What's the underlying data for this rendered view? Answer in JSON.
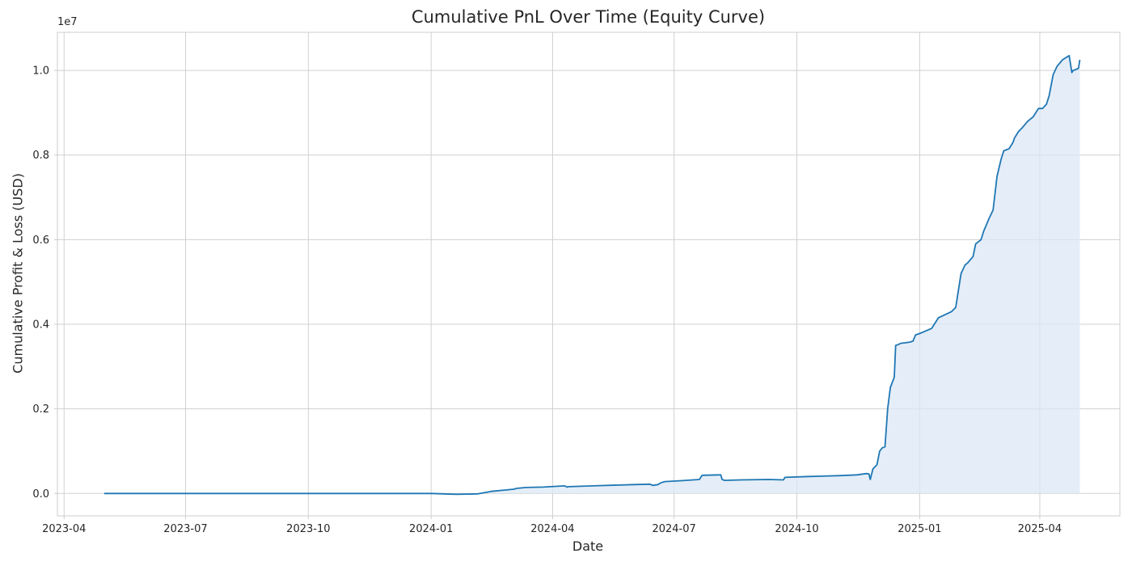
{
  "chart_data": {
    "type": "line",
    "title": "Cumulative PnL Over Time (Equity Curve)",
    "xlabel": "Date",
    "ylabel": "Cumulative Profit & Loss (USD)",
    "y_offset_label": "1e7",
    "x_ticks": [
      "2023-04",
      "2023-07",
      "2023-10",
      "2024-01",
      "2024-04",
      "2024-07",
      "2024-10",
      "2025-01",
      "2025-04"
    ],
    "y_ticks": [
      "0.0",
      "0.2",
      "0.4",
      "0.6",
      "0.8",
      "1.0"
    ],
    "xlim": [
      "2023-03-27",
      "2025-05-31"
    ],
    "ylim": [
      -530000,
      10900000
    ],
    "grid": true,
    "fill_under_line": true,
    "colors": {
      "line": "#1f77b4",
      "fill": "#dce8f5",
      "grid": "#d0d0d0",
      "axes": "#cccccc"
    },
    "series": [
      {
        "x": [
          "2023-05-01",
          "2023-08-01",
          "2023-11-01",
          "2024-01-01",
          "2024-01-20",
          "2024-02-05",
          "2024-02-15",
          "2024-02-25",
          "2024-03-03",
          "2024-03-05",
          "2024-03-12",
          "2024-03-25",
          "2024-04-10",
          "2024-04-12",
          "2024-04-13",
          "2024-05-01",
          "2024-06-01",
          "2024-06-13",
          "2024-06-15",
          "2024-06-19",
          "2024-06-21",
          "2024-06-24",
          "2024-07-05",
          "2024-07-20",
          "2024-07-22",
          "2024-08-05",
          "2024-08-06",
          "2024-08-08",
          "2024-08-20",
          "2024-09-10",
          "2024-09-21",
          "2024-09-22",
          "2024-10-10",
          "2024-11-01",
          "2024-11-15",
          "2024-11-22",
          "2024-11-24",
          "2024-11-25",
          "2024-11-27",
          "2024-11-30",
          "2024-12-02",
          "2024-12-04",
          "2024-12-06",
          "2024-12-08",
          "2024-12-10",
          "2024-12-13",
          "2024-12-14",
          "2024-12-16",
          "2024-12-18",
          "2024-12-21",
          "2024-12-23",
          "2024-12-25",
          "2024-12-27",
          "2024-12-29",
          "2025-01-01",
          "2025-01-10",
          "2025-01-13",
          "2025-01-15",
          "2025-01-25",
          "2025-01-28",
          "2025-02-01",
          "2025-02-04",
          "2025-02-06",
          "2025-02-10",
          "2025-02-12",
          "2025-02-16",
          "2025-02-18",
          "2025-02-22",
          "2025-02-25",
          "2025-02-28",
          "2025-03-03",
          "2025-03-05",
          "2025-03-09",
          "2025-03-12",
          "2025-03-13",
          "2025-03-16",
          "2025-03-19",
          "2025-03-23",
          "2025-03-27",
          "2025-03-31",
          "2025-04-03",
          "2025-04-06",
          "2025-04-08",
          "2025-04-11",
          "2025-04-14",
          "2025-04-18",
          "2025-04-23",
          "2025-04-25",
          "2025-04-26",
          "2025-04-28",
          "2025-04-30",
          "2025-05-01"
        ],
        "values": [
          0,
          0,
          0,
          0,
          -20000,
          -10000,
          50000,
          80000,
          100000,
          120000,
          140000,
          150000,
          180000,
          150000,
          160000,
          180000,
          210000,
          220000,
          190000,
          210000,
          250000,
          280000,
          300000,
          330000,
          430000,
          440000,
          330000,
          310000,
          320000,
          330000,
          320000,
          380000,
          400000,
          420000,
          440000,
          470000,
          460000,
          330000,
          580000,
          680000,
          1000000,
          1080000,
          1100000,
          2000000,
          2500000,
          2750000,
          3500000,
          3520000,
          3550000,
          3560000,
          3570000,
          3580000,
          3600000,
          3750000,
          3780000,
          3900000,
          4050000,
          4150000,
          4300000,
          4400000,
          5200000,
          5400000,
          5450000,
          5600000,
          5900000,
          6000000,
          6200000,
          6500000,
          6700000,
          7500000,
          7900000,
          8100000,
          8150000,
          8300000,
          8400000,
          8550000,
          8650000,
          8800000,
          8900000,
          9100000,
          9100000,
          9200000,
          9400000,
          9900000,
          10100000,
          10250000,
          10350000,
          9950000,
          10000000,
          10020000,
          10050000,
          10250000
        ]
      }
    ]
  }
}
